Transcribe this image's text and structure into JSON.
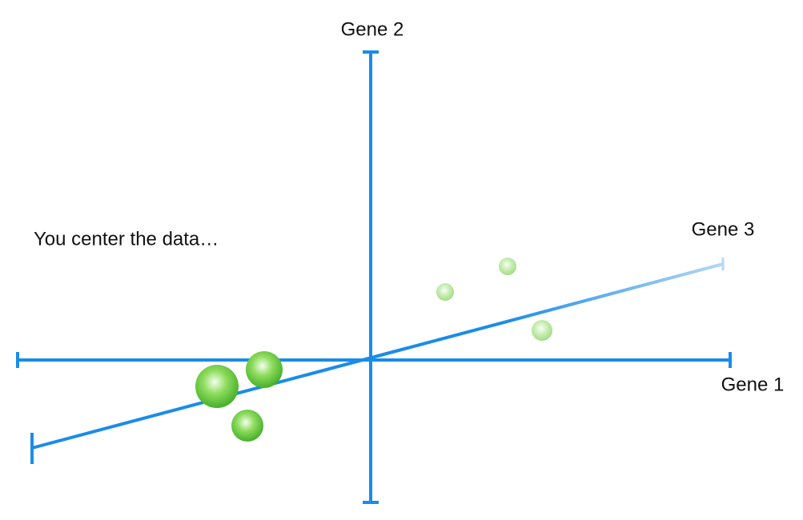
{
  "caption": "You center the data…",
  "axes": {
    "gene1": "Gene 1",
    "gene2": "Gene 2",
    "gene3": "Gene 3"
  }
}
